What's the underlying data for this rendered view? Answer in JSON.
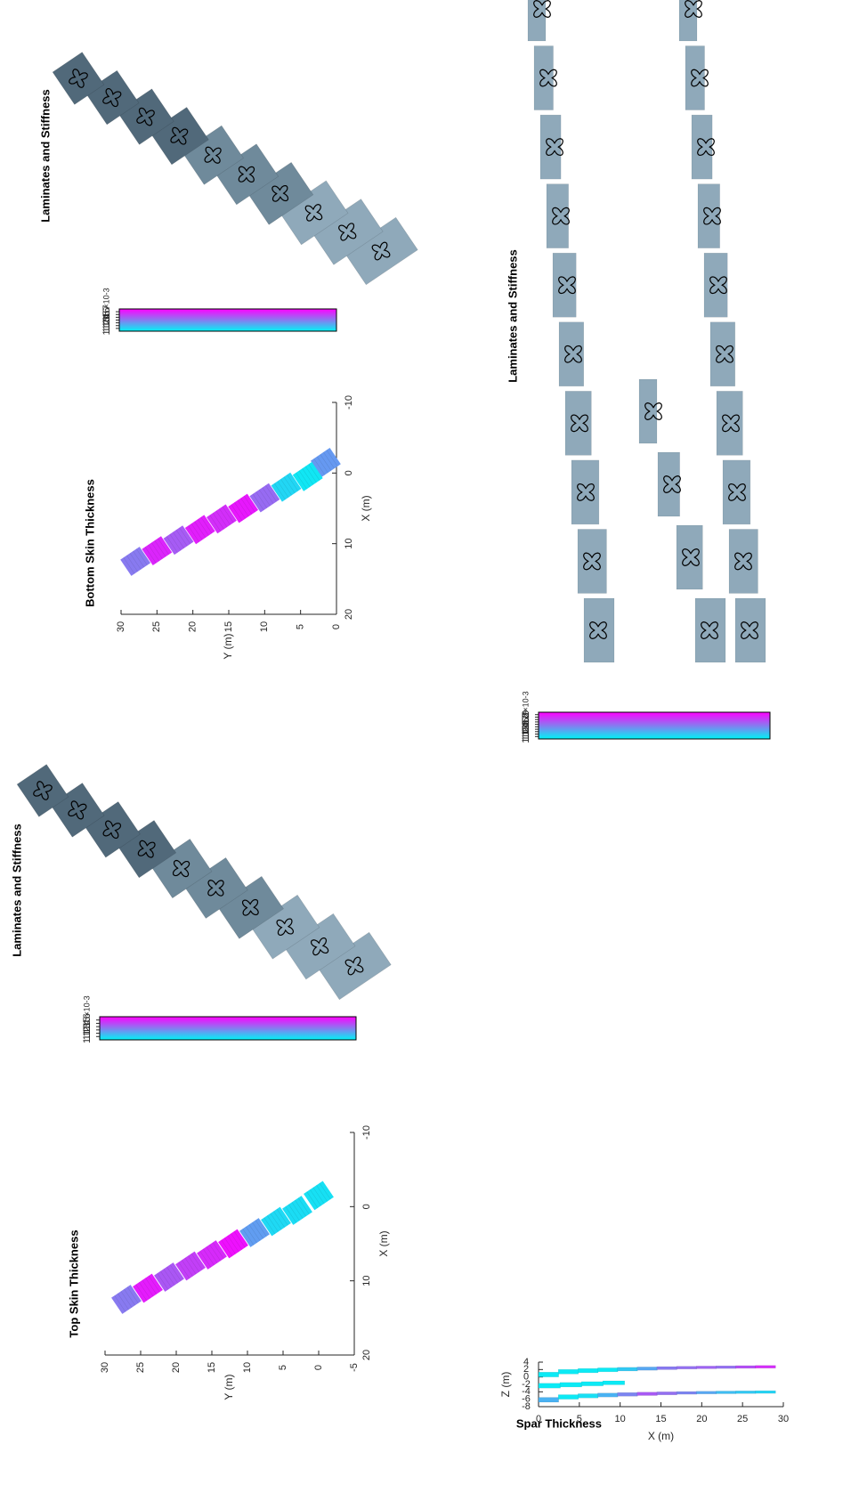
{
  "chart_data": [
    {
      "id": "top_skin",
      "type": "heatmap",
      "title": "Top Skin Thickness",
      "xlabel": "X (m)",
      "ylabel": "Y (m)",
      "xlim": [
        -10,
        20
      ],
      "ylim": [
        -5,
        30
      ],
      "xticks": [
        "-10",
        "0",
        "10",
        "20"
      ],
      "yticks": [
        "-5",
        "0",
        "5",
        "10",
        "15",
        "20",
        "25",
        "30"
      ],
      "colorbar": {
        "min": 1.0,
        "max": 1.7,
        "ticks": [
          "1.1",
          "1.2",
          "1.3",
          "1.4",
          "1.5",
          "1.6"
        ],
        "exponent": "×10-3",
        "colors": [
          "#00f5f5",
          "#ff00ff"
        ]
      },
      "panels": [
        {
          "x": -1.5,
          "y": 0.0,
          "value": 1.06
        },
        {
          "x": 0.5,
          "y": 3.0,
          "value": 1.07
        },
        {
          "x": 2.0,
          "y": 6.0,
          "value": 1.08
        },
        {
          "x": 3.5,
          "y": 9.0,
          "value": 1.25
        },
        {
          "x": 5.0,
          "y": 12.0,
          "value": 1.65
        },
        {
          "x": 6.5,
          "y": 15.0,
          "value": 1.58
        },
        {
          "x": 8.0,
          "y": 18.0,
          "value": 1.52
        },
        {
          "x": 9.5,
          "y": 21.0,
          "value": 1.45
        },
        {
          "x": 11.0,
          "y": 24.0,
          "value": 1.62
        },
        {
          "x": 12.5,
          "y": 27.0,
          "value": 1.35
        }
      ]
    },
    {
      "id": "bottom_skin",
      "type": "heatmap",
      "title": "Bottom Skin Thickness",
      "xlabel": "X (m)",
      "ylabel": "Y (m)",
      "xlim": [
        -10,
        20
      ],
      "ylim": [
        0,
        30
      ],
      "xticks": [
        "-10",
        "0",
        "10",
        "20"
      ],
      "yticks": [
        "0",
        "5",
        "10",
        "15",
        "20",
        "25",
        "30"
      ],
      "colorbar": {
        "min": 1.0,
        "max": 1.8,
        "ticks": [
          "1.1",
          "1.2",
          "1.3",
          "1.4",
          "1.5",
          "1.6",
          "1.7"
        ],
        "exponent": "×10-3",
        "colors": [
          "#00f5f5",
          "#ff00ff"
        ]
      },
      "panels": [
        {
          "x": -1.5,
          "y": 1.5,
          "value": 1.3
        },
        {
          "x": 0.5,
          "y": 4.0,
          "value": 1.05
        },
        {
          "x": 2.0,
          "y": 7.0,
          "value": 1.1
        },
        {
          "x": 3.5,
          "y": 10.0,
          "value": 1.45
        },
        {
          "x": 5.0,
          "y": 13.0,
          "value": 1.72
        },
        {
          "x": 6.5,
          "y": 16.0,
          "value": 1.65
        },
        {
          "x": 8.0,
          "y": 19.0,
          "value": 1.7
        },
        {
          "x": 9.5,
          "y": 22.0,
          "value": 1.5
        },
        {
          "x": 11.0,
          "y": 25.0,
          "value": 1.68
        },
        {
          "x": 12.5,
          "y": 28.0,
          "value": 1.4
        }
      ]
    },
    {
      "id": "spar",
      "type": "heatmap",
      "title": "Spar Thickness",
      "xlabel": "X (m)",
      "ylabel": "Z (m)",
      "xlim": [
        0,
        30
      ],
      "ylim": [
        -8,
        4
      ],
      "xticks": [
        "0",
        "5",
        "10",
        "15",
        "20",
        "25",
        "30"
      ],
      "yticks": [
        "-8",
        "-6",
        "-4",
        "-2",
        "0",
        "2",
        "4"
      ],
      "colorbar": {
        "min": 1.0,
        "max": 2.1,
        "ticks": [
          "1.1",
          "1.2",
          "1.3",
          "1.4",
          "1.5",
          "1.6",
          "1.7",
          "1.8",
          "1.9",
          "2"
        ],
        "exponent": "×10-3",
        "colors": [
          "#00f5f5",
          "#ff00ff"
        ]
      },
      "bands": [
        {
          "x0": 0,
          "x1": 29,
          "z0": 0.0,
          "z1": 3.3,
          "values": [
            1.05,
            1.05,
            1.05,
            1.05,
            1.2,
            1.35,
            1.55,
            1.6,
            1.65,
            1.6,
            1.75,
            1.9
          ]
        },
        {
          "x0": 0,
          "x1": 10.5,
          "z0": -3.0,
          "z1": -1.2,
          "values": [
            1.05,
            1.05,
            1.05,
            1.05
          ]
        },
        {
          "x0": 0,
          "x1": 29,
          "z0": -6.8,
          "z1": 3.3,
          "values": [
            1.3,
            1.05,
            1.1,
            1.3,
            1.5,
            1.7,
            1.6,
            1.5,
            1.35,
            1.25,
            1.2,
            1.15
          ]
        }
      ]
    },
    {
      "id": "lam_top",
      "type": "scatter",
      "title": "Laminates and Stiffness",
      "glyph_count": 10
    },
    {
      "id": "lam_bottom",
      "type": "scatter",
      "title": "Laminates and Stiffness",
      "glyph_count": 10
    },
    {
      "id": "lam_spar",
      "type": "scatter",
      "title": "Laminates and Stiffness",
      "rows": [
        {
          "name_hidden": "",
          "glyphs": 10
        },
        {
          "name_hidden": "",
          "glyphs": 4
        },
        {
          "name_hidden": "",
          "glyphs": 10
        }
      ]
    }
  ],
  "colors": {
    "panel_grey": "#8fa9ba",
    "panel_dark": "#3f5866",
    "axis": "#262626",
    "mesh": "#000000"
  }
}
